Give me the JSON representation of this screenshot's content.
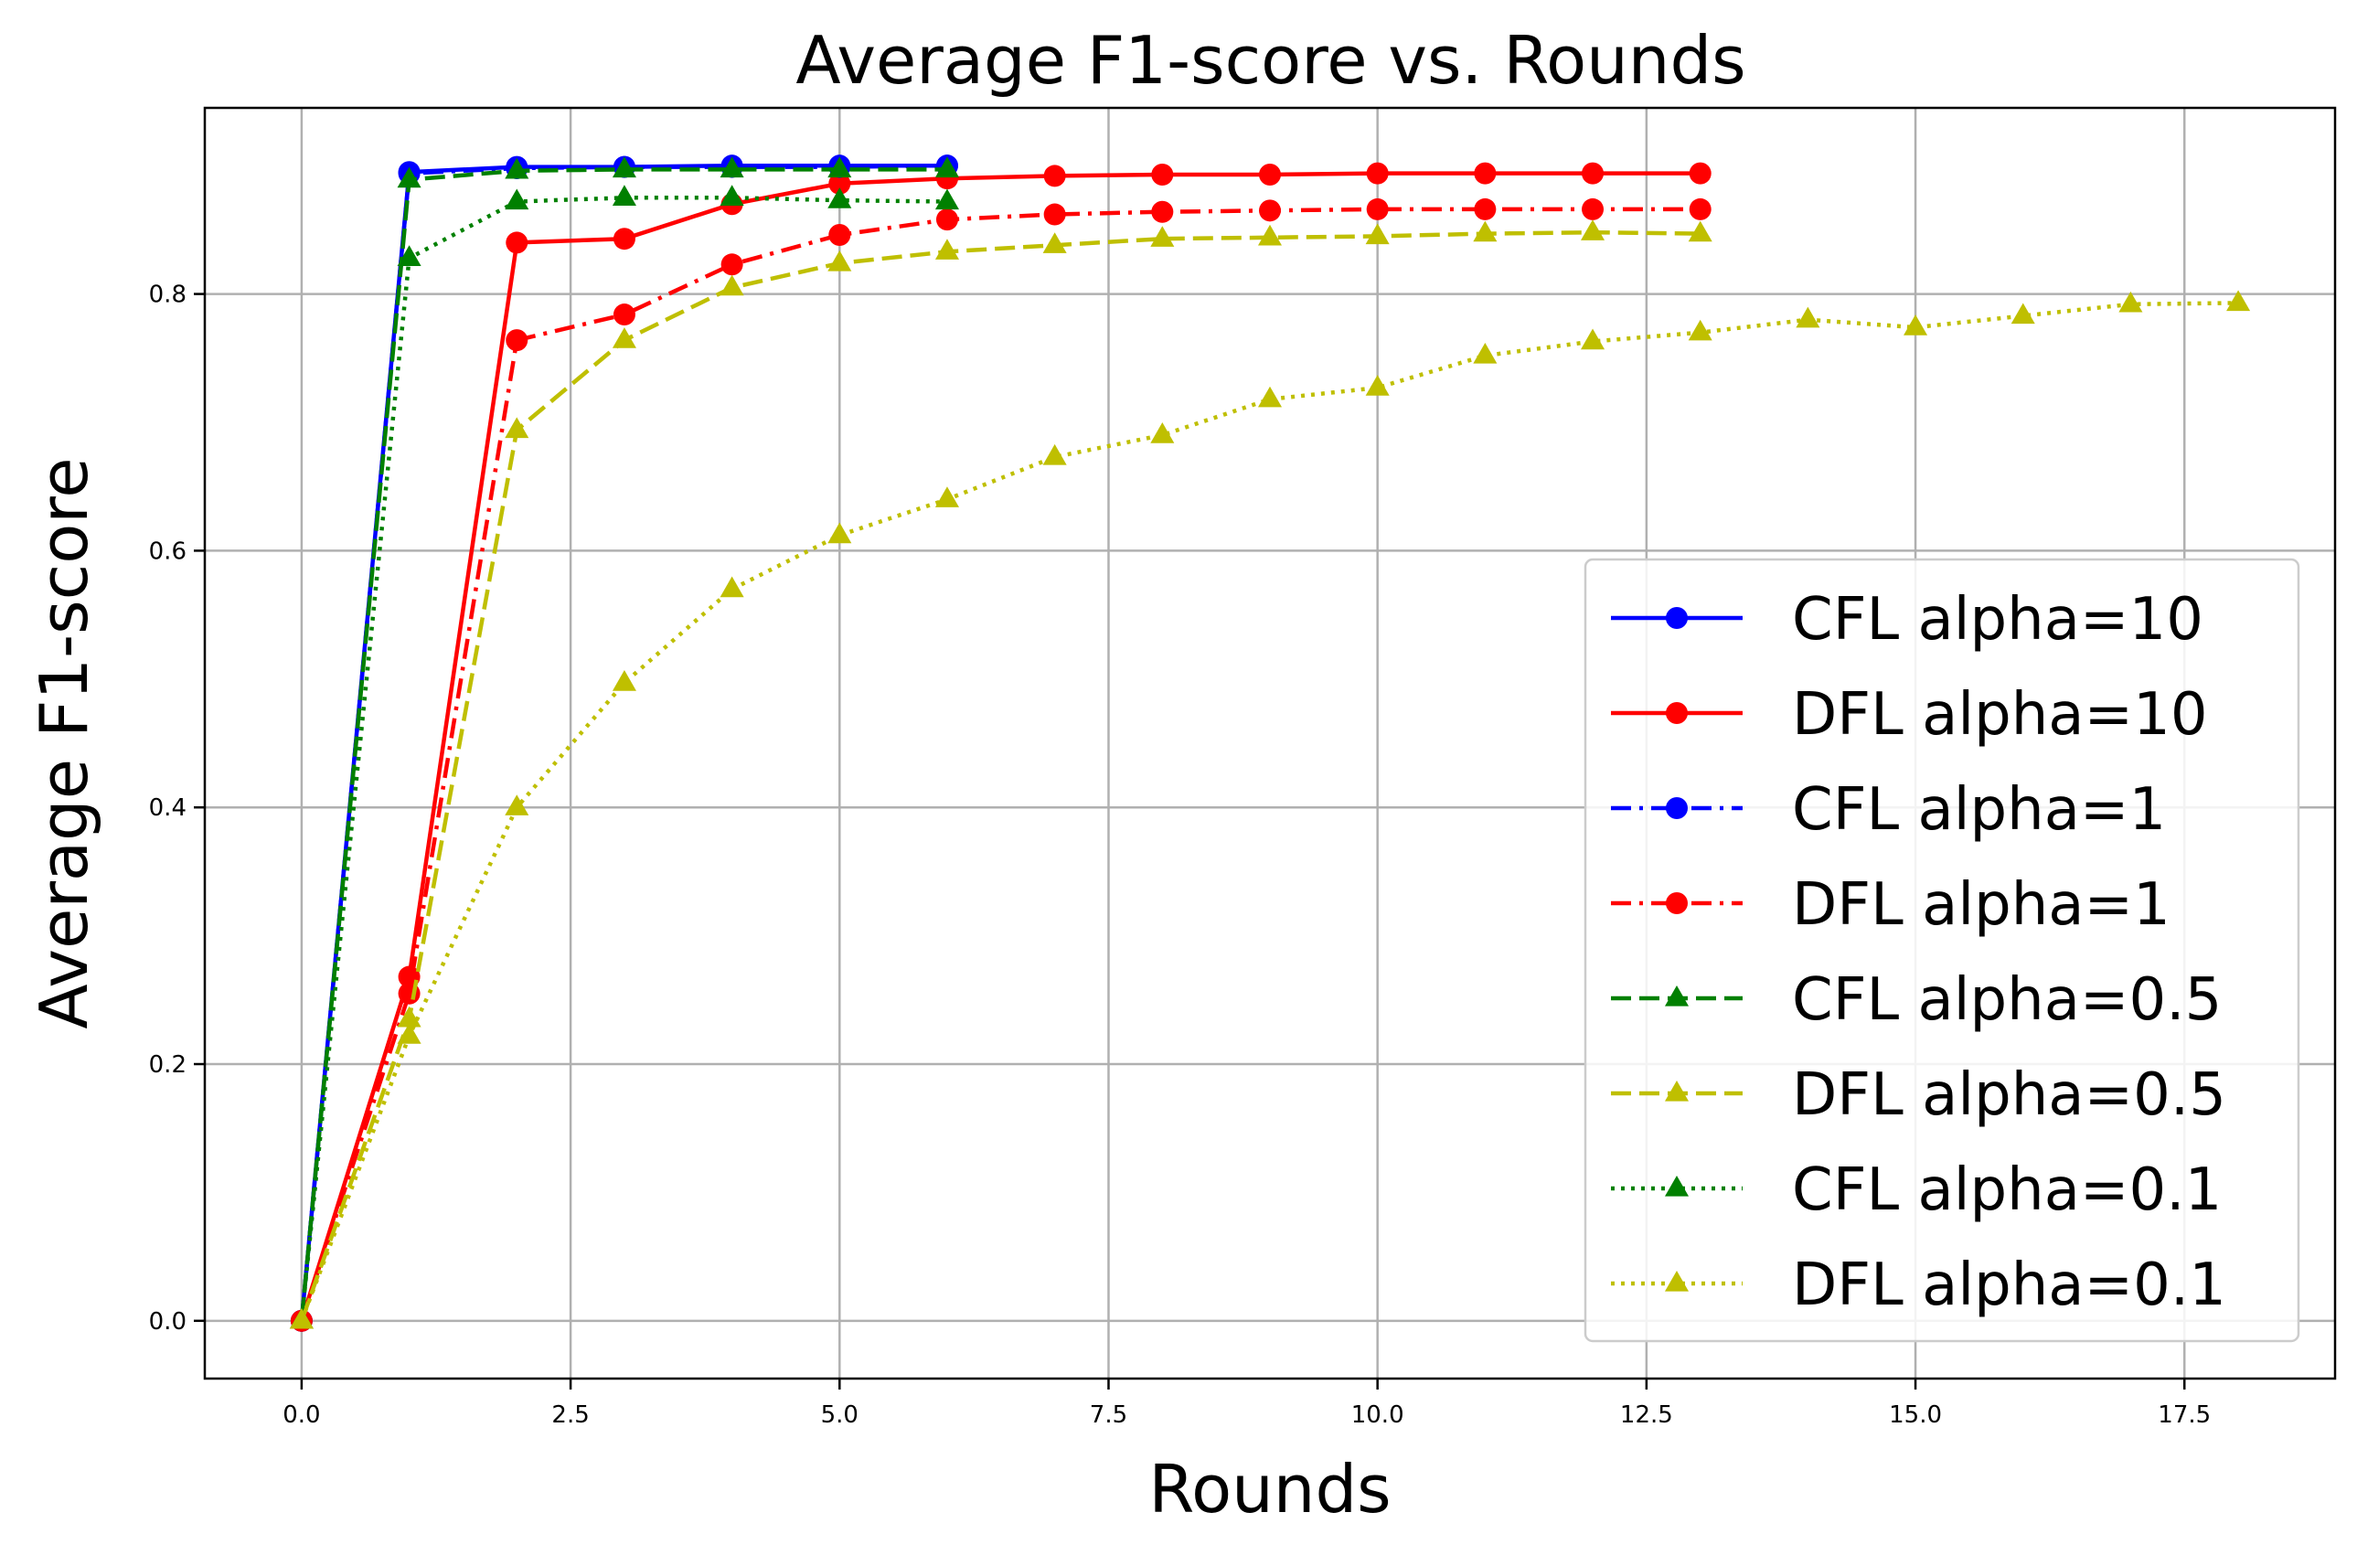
{
  "chart_data": {
    "type": "line",
    "title": "Average F1-score vs. Rounds",
    "xlabel": "Rounds",
    "ylabel": "Average F1-score",
    "xlim": [
      -0.9,
      18.9
    ],
    "ylim": [
      -0.045,
      0.945
    ],
    "xticks": [
      0.0,
      2.5,
      5.0,
      7.5,
      10.0,
      12.5,
      15.0,
      17.5
    ],
    "xtick_labels": [
      "0.0",
      "2.5",
      "5.0",
      "7.5",
      "10.0",
      "12.5",
      "15.0",
      "17.5"
    ],
    "yticks": [
      0.0,
      0.2,
      0.4,
      0.6,
      0.8
    ],
    "ytick_labels": [
      "0.0",
      "0.2",
      "0.4",
      "0.6",
      "0.8"
    ],
    "grid": true,
    "legend_position": "lower-right",
    "series": [
      {
        "name": "CFL alpha=10",
        "color": "#0000ff",
        "linestyle": "solid",
        "marker": "circle",
        "x": [
          0,
          1,
          2,
          3,
          4,
          5,
          6
        ],
        "y": [
          0.0,
          0.895,
          0.899,
          0.899,
          0.9,
          0.9,
          0.9
        ]
      },
      {
        "name": "DFL alpha=10",
        "color": "#ff0000",
        "linestyle": "solid",
        "marker": "circle",
        "x": [
          0,
          1,
          2,
          3,
          4,
          5,
          6,
          7,
          8,
          9,
          10,
          11,
          12,
          13
        ],
        "y": [
          0.0,
          0.268,
          0.84,
          0.843,
          0.87,
          0.886,
          0.89,
          0.892,
          0.893,
          0.893,
          0.894,
          0.894,
          0.894,
          0.894
        ]
      },
      {
        "name": "CFL alpha=1",
        "color": "#0000ff",
        "linestyle": "dashdot",
        "marker": "circle",
        "x": [
          0,
          1,
          2,
          3,
          4,
          5,
          6
        ],
        "y": [
          0.0,
          0.894,
          0.898,
          0.899,
          0.899,
          0.899,
          0.9
        ]
      },
      {
        "name": "DFL alpha=1",
        "color": "#ff0000",
        "linestyle": "dashdot",
        "marker": "circle",
        "x": [
          0,
          1,
          2,
          3,
          4,
          5,
          6,
          7,
          8,
          9,
          10,
          11,
          12,
          13
        ],
        "y": [
          0.0,
          0.255,
          0.764,
          0.784,
          0.823,
          0.846,
          0.858,
          0.862,
          0.864,
          0.865,
          0.866,
          0.866,
          0.866,
          0.866
        ]
      },
      {
        "name": "CFL alpha=0.5",
        "color": "#008000",
        "linestyle": "dashed",
        "marker": "triangle",
        "x": [
          0,
          1,
          2,
          3,
          4,
          5,
          6
        ],
        "y": [
          0.0,
          0.889,
          0.896,
          0.897,
          0.897,
          0.897,
          0.897
        ]
      },
      {
        "name": "DFL alpha=0.5",
        "color": "#bfbf00",
        "linestyle": "dashed",
        "marker": "triangle",
        "x": [
          0,
          1,
          2,
          3,
          4,
          5,
          6,
          7,
          8,
          9,
          10,
          11,
          12,
          13
        ],
        "y": [
          0.0,
          0.235,
          0.694,
          0.764,
          0.805,
          0.824,
          0.833,
          0.838,
          0.843,
          0.844,
          0.845,
          0.847,
          0.848,
          0.847
        ]
      },
      {
        "name": "CFL alpha=0.1",
        "color": "#008000",
        "linestyle": "dotted",
        "marker": "triangle",
        "x": [
          0,
          1,
          2,
          3,
          4,
          5,
          6
        ],
        "y": [
          0.0,
          0.828,
          0.872,
          0.875,
          0.875,
          0.873,
          0.872
        ]
      },
      {
        "name": "DFL alpha=0.1",
        "color": "#bfbf00",
        "linestyle": "dotted",
        "marker": "triangle",
        "x": [
          0,
          1,
          2,
          3,
          4,
          5,
          6,
          7,
          8,
          9,
          10,
          11,
          12,
          13,
          14,
          15,
          16,
          17,
          18
        ],
        "y": [
          0.0,
          0.222,
          0.4,
          0.497,
          0.57,
          0.612,
          0.64,
          0.673,
          0.69,
          0.718,
          0.727,
          0.752,
          0.763,
          0.77,
          0.78,
          0.774,
          0.783,
          0.792,
          0.793
        ]
      }
    ]
  }
}
